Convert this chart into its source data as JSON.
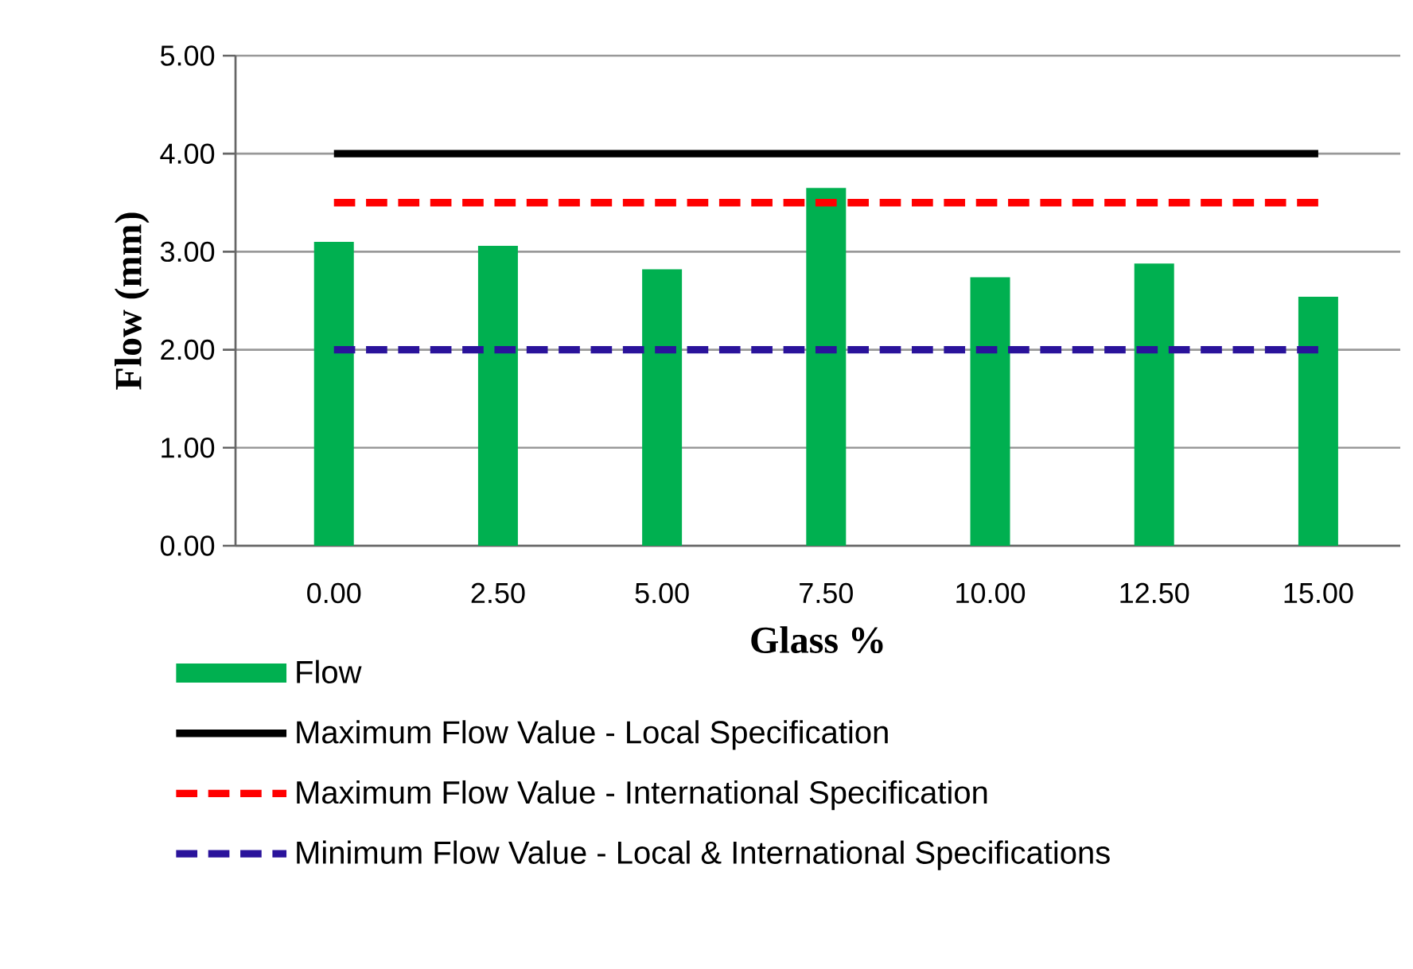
{
  "chart_data": {
    "type": "bar",
    "xlabel": "Glass %",
    "ylabel": "Flow (mm)",
    "categories": [
      "0.00",
      "2.50",
      "5.00",
      "7.50",
      "10.00",
      "12.50",
      "15.00"
    ],
    "series": [
      {
        "name": "Flow",
        "color": "#00b050",
        "values": [
          3.1,
          3.06,
          2.82,
          3.65,
          2.74,
          2.88,
          2.54
        ]
      },
      {
        "name": "Maximum Flow Value - Local Specification",
        "type": "line",
        "color": "#000000",
        "line_style": "solid",
        "values": [
          4,
          4,
          4,
          4,
          4,
          4,
          4
        ]
      },
      {
        "name": "Maximum Flow Value - International Specification",
        "type": "line",
        "color": "#ff0000",
        "line_style": "dashed",
        "values": [
          3.5,
          3.5,
          3.5,
          3.5,
          3.5,
          3.5,
          3.5
        ]
      },
      {
        "name": "Minimum Flow Value - Local & International Specifications",
        "type": "line",
        "color": "#2a139b",
        "line_style": "dashed",
        "values": [
          2,
          2,
          2,
          2,
          2,
          2,
          2
        ]
      }
    ],
    "ylim": [
      0,
      5
    ],
    "yticks": [
      {
        "value": 0,
        "label": "0.00"
      },
      {
        "value": 1,
        "label": "1.00"
      },
      {
        "value": 2,
        "label": "2.00"
      },
      {
        "value": 3,
        "label": "3.00"
      },
      {
        "value": 4,
        "label": "4.00"
      },
      {
        "value": 5,
        "label": "5.00"
      }
    ],
    "grid": "y",
    "legend": "bottom"
  }
}
